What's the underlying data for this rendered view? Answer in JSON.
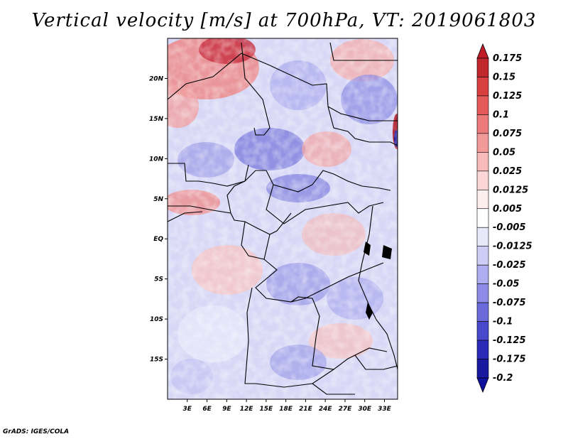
{
  "title": "Vertical velocity [m/s] at 700hPa, VT: 2019061803",
  "credit": "GrADS: IGES/COLA",
  "map": {
    "lon_range": [
      0,
      35
    ],
    "lat_range": [
      -20,
      25
    ],
    "lat_ticks": [
      {
        "value": 20,
        "label": "20N"
      },
      {
        "value": 15,
        "label": "15N"
      },
      {
        "value": 10,
        "label": "10N"
      },
      {
        "value": 5,
        "label": "5N"
      },
      {
        "value": 0,
        "label": "EQ"
      },
      {
        "value": -5,
        "label": "5S"
      },
      {
        "value": -10,
        "label": "10S"
      },
      {
        "value": -15,
        "label": "15S"
      }
    ],
    "lon_ticks": [
      {
        "value": 3,
        "label": "3E"
      },
      {
        "value": 6,
        "label": "6E"
      },
      {
        "value": 9,
        "label": "9E"
      },
      {
        "value": 12,
        "label": "12E"
      },
      {
        "value": 15,
        "label": "15E"
      },
      {
        "value": 18,
        "label": "18E"
      },
      {
        "value": 21,
        "label": "21E"
      },
      {
        "value": 24,
        "label": "24E"
      },
      {
        "value": 27,
        "label": "27E"
      },
      {
        "value": 30,
        "label": "30E"
      },
      {
        "value": 33,
        "label": "33E"
      }
    ]
  },
  "colorbar": {
    "levels": [
      {
        "label": "0.175",
        "color": "#a01020"
      },
      {
        "label": "0.15",
        "color": "#c0282c"
      },
      {
        "label": "0.125",
        "color": "#d84040"
      },
      {
        "label": "0.1",
        "color": "#e45a5a"
      },
      {
        "label": "0.075",
        "color": "#ec7a7a"
      },
      {
        "label": "0.05",
        "color": "#f29a98"
      },
      {
        "label": "0.025",
        "color": "#f6baba"
      },
      {
        "label": "0.0125",
        "color": "#fad6d6"
      },
      {
        "label": "0.005",
        "color": "#fdeeee"
      },
      {
        "label": "-0.005",
        "color": "#ffffff"
      },
      {
        "label": "-0.0125",
        "color": "#e8e8fb"
      },
      {
        "label": "-0.025",
        "color": "#cdcdf6"
      },
      {
        "label": "-0.05",
        "color": "#adadef"
      },
      {
        "label": "-0.075",
        "color": "#8c8ce6"
      },
      {
        "label": "-0.1",
        "color": "#6a6adb"
      },
      {
        "label": "-0.125",
        "color": "#4848cc"
      },
      {
        "label": "-0.175",
        "color": "#2a2ab8"
      },
      {
        "label": "-0.2",
        "color": "#1818a0"
      }
    ],
    "top_color": "#c01c28",
    "bottom_color": "#1010a0"
  }
}
